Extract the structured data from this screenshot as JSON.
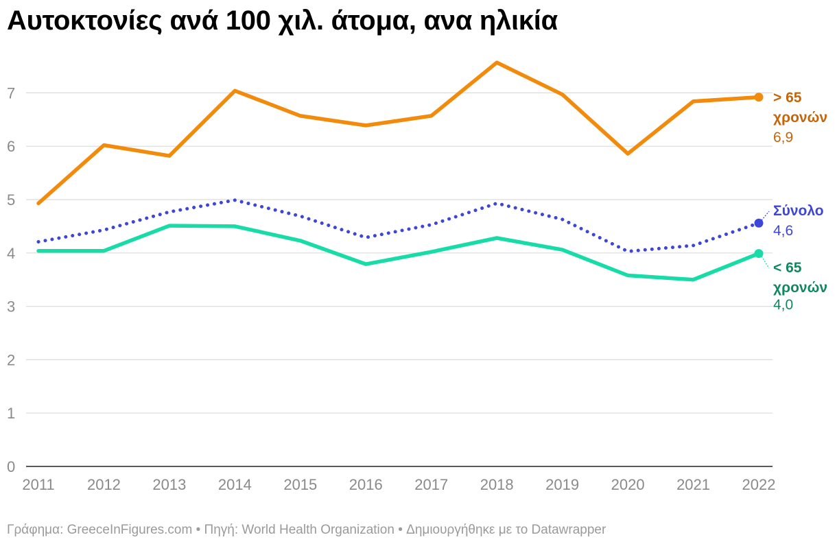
{
  "title": "Αυτοκτονίες ανά 100 χιλ. άτομα, ανα ηλικία",
  "footer": {
    "text": "Γράφημα: GreeceInFigures.com • Πηγή: World Health Organization • Δημιουργήθηκε με το Datawrapper"
  },
  "chart_data": {
    "type": "line",
    "title": "Αυτοκτονίες ανά 100 χιλ. άτομα, ανα ηλικία",
    "xlabel": "",
    "ylabel": "",
    "x": [
      2011,
      2012,
      2013,
      2014,
      2015,
      2016,
      2017,
      2018,
      2019,
      2020,
      2021,
      2022
    ],
    "x_tick_labels": [
      "2011",
      "2012",
      "2013",
      "2014",
      "2015",
      "2016",
      "2017",
      "2018",
      "2019",
      "2020",
      "2021",
      "2022"
    ],
    "ylim": [
      0,
      7.6
    ],
    "yticks": [
      0,
      1,
      2,
      3,
      4,
      5,
      6,
      7
    ],
    "y_tick_labels": [
      "0",
      "1",
      "2",
      "3",
      "4",
      "5",
      "6",
      "7"
    ],
    "grid": true,
    "legend": "direct labels at line ends (right)",
    "series": [
      {
        "key": "over65",
        "label_lines": [
          "> 65",
          "χρονών"
        ],
        "end_value_label": "6,9",
        "color": "#f28b0c",
        "label_color": "#c4650a",
        "style": "solid",
        "values": [
          4.93,
          6.02,
          5.82,
          7.04,
          6.57,
          6.39,
          6.57,
          7.57,
          6.97,
          5.86,
          6.84,
          6.92
        ]
      },
      {
        "key": "total",
        "label_lines": [
          "Σύνολο"
        ],
        "end_value_label": "4,6",
        "color": "#3e46d8",
        "label_color": "#3e46d8",
        "style": "dotted",
        "values": [
          4.21,
          4.43,
          4.77,
          4.99,
          4.69,
          4.29,
          4.53,
          4.93,
          4.63,
          4.03,
          4.14,
          4.56
        ]
      },
      {
        "key": "under65",
        "label_lines": [
          "< 65",
          "χρονών"
        ],
        "end_value_label": "4,0",
        "color": "#18dca8",
        "label_color": "#11875f",
        "style": "solid",
        "values": [
          4.04,
          4.04,
          4.51,
          4.5,
          4.23,
          3.79,
          4.02,
          4.28,
          4.06,
          3.58,
          3.5,
          3.99
        ]
      }
    ]
  }
}
